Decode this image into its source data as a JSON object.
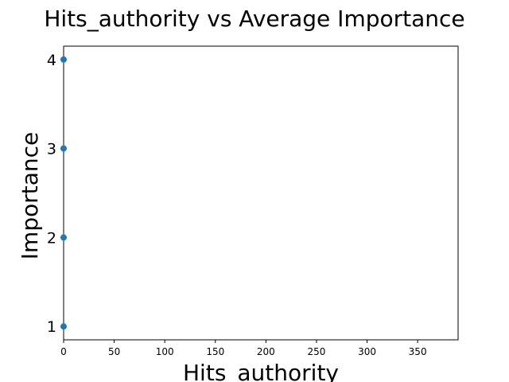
{
  "chart_data": {
    "type": "scatter",
    "title": "Hits_authority vs Average Importance",
    "xlabel": "Hits_authority",
    "ylabel": "Importance",
    "xlim": [
      0,
      390
    ],
    "ylim": [
      0.85,
      4.15
    ],
    "xticks": [
      0,
      50,
      100,
      150,
      200,
      250,
      300,
      350
    ],
    "yticks": [
      1,
      2,
      3,
      4
    ],
    "grid": false,
    "points": [
      {
        "x": 0,
        "y": 1
      },
      {
        "x": 0,
        "y": 2
      },
      {
        "x": 0,
        "y": 3
      },
      {
        "x": 0,
        "y": 4
      }
    ],
    "color": "#1f77b4"
  }
}
